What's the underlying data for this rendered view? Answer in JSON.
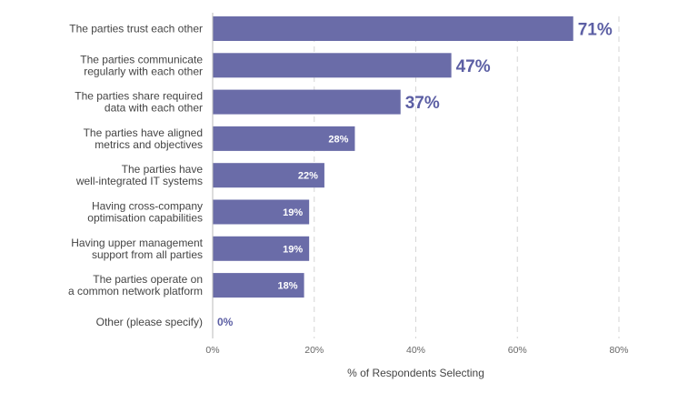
{
  "chart_data": {
    "type": "bar",
    "orientation": "horizontal",
    "categories": [
      [
        "The parties trust each other"
      ],
      [
        "The parties communicate",
        "regularly with each other"
      ],
      [
        "The parties share required",
        "data with each other"
      ],
      [
        "The parties have aligned",
        "metrics and objectives"
      ],
      [
        "The parties have",
        "well-integrated IT systems"
      ],
      [
        "Having cross-company",
        "optimisation capabilities"
      ],
      [
        "Having upper management",
        "support from all parties"
      ],
      [
        "The parties operate on",
        "a common network platform"
      ],
      [
        "Other (please specify)"
      ]
    ],
    "values": [
      71,
      47,
      37,
      28,
      22,
      19,
      19,
      18,
      0
    ],
    "value_labels": [
      "71%",
      "47%",
      "37%",
      "28%",
      "22%",
      "19%",
      "19%",
      "18%",
      "0%"
    ],
    "xlabel": "% of Respondents Selecting",
    "xlim": [
      0,
      80
    ],
    "xticks": [
      0,
      20,
      40,
      60,
      80
    ],
    "xtick_labels": [
      "0%",
      "20%",
      "40%",
      "60%",
      "80%"
    ],
    "grid": "vertical dashed",
    "bar_color": "#6a6ca8",
    "label_color": "#5c5fa4"
  }
}
